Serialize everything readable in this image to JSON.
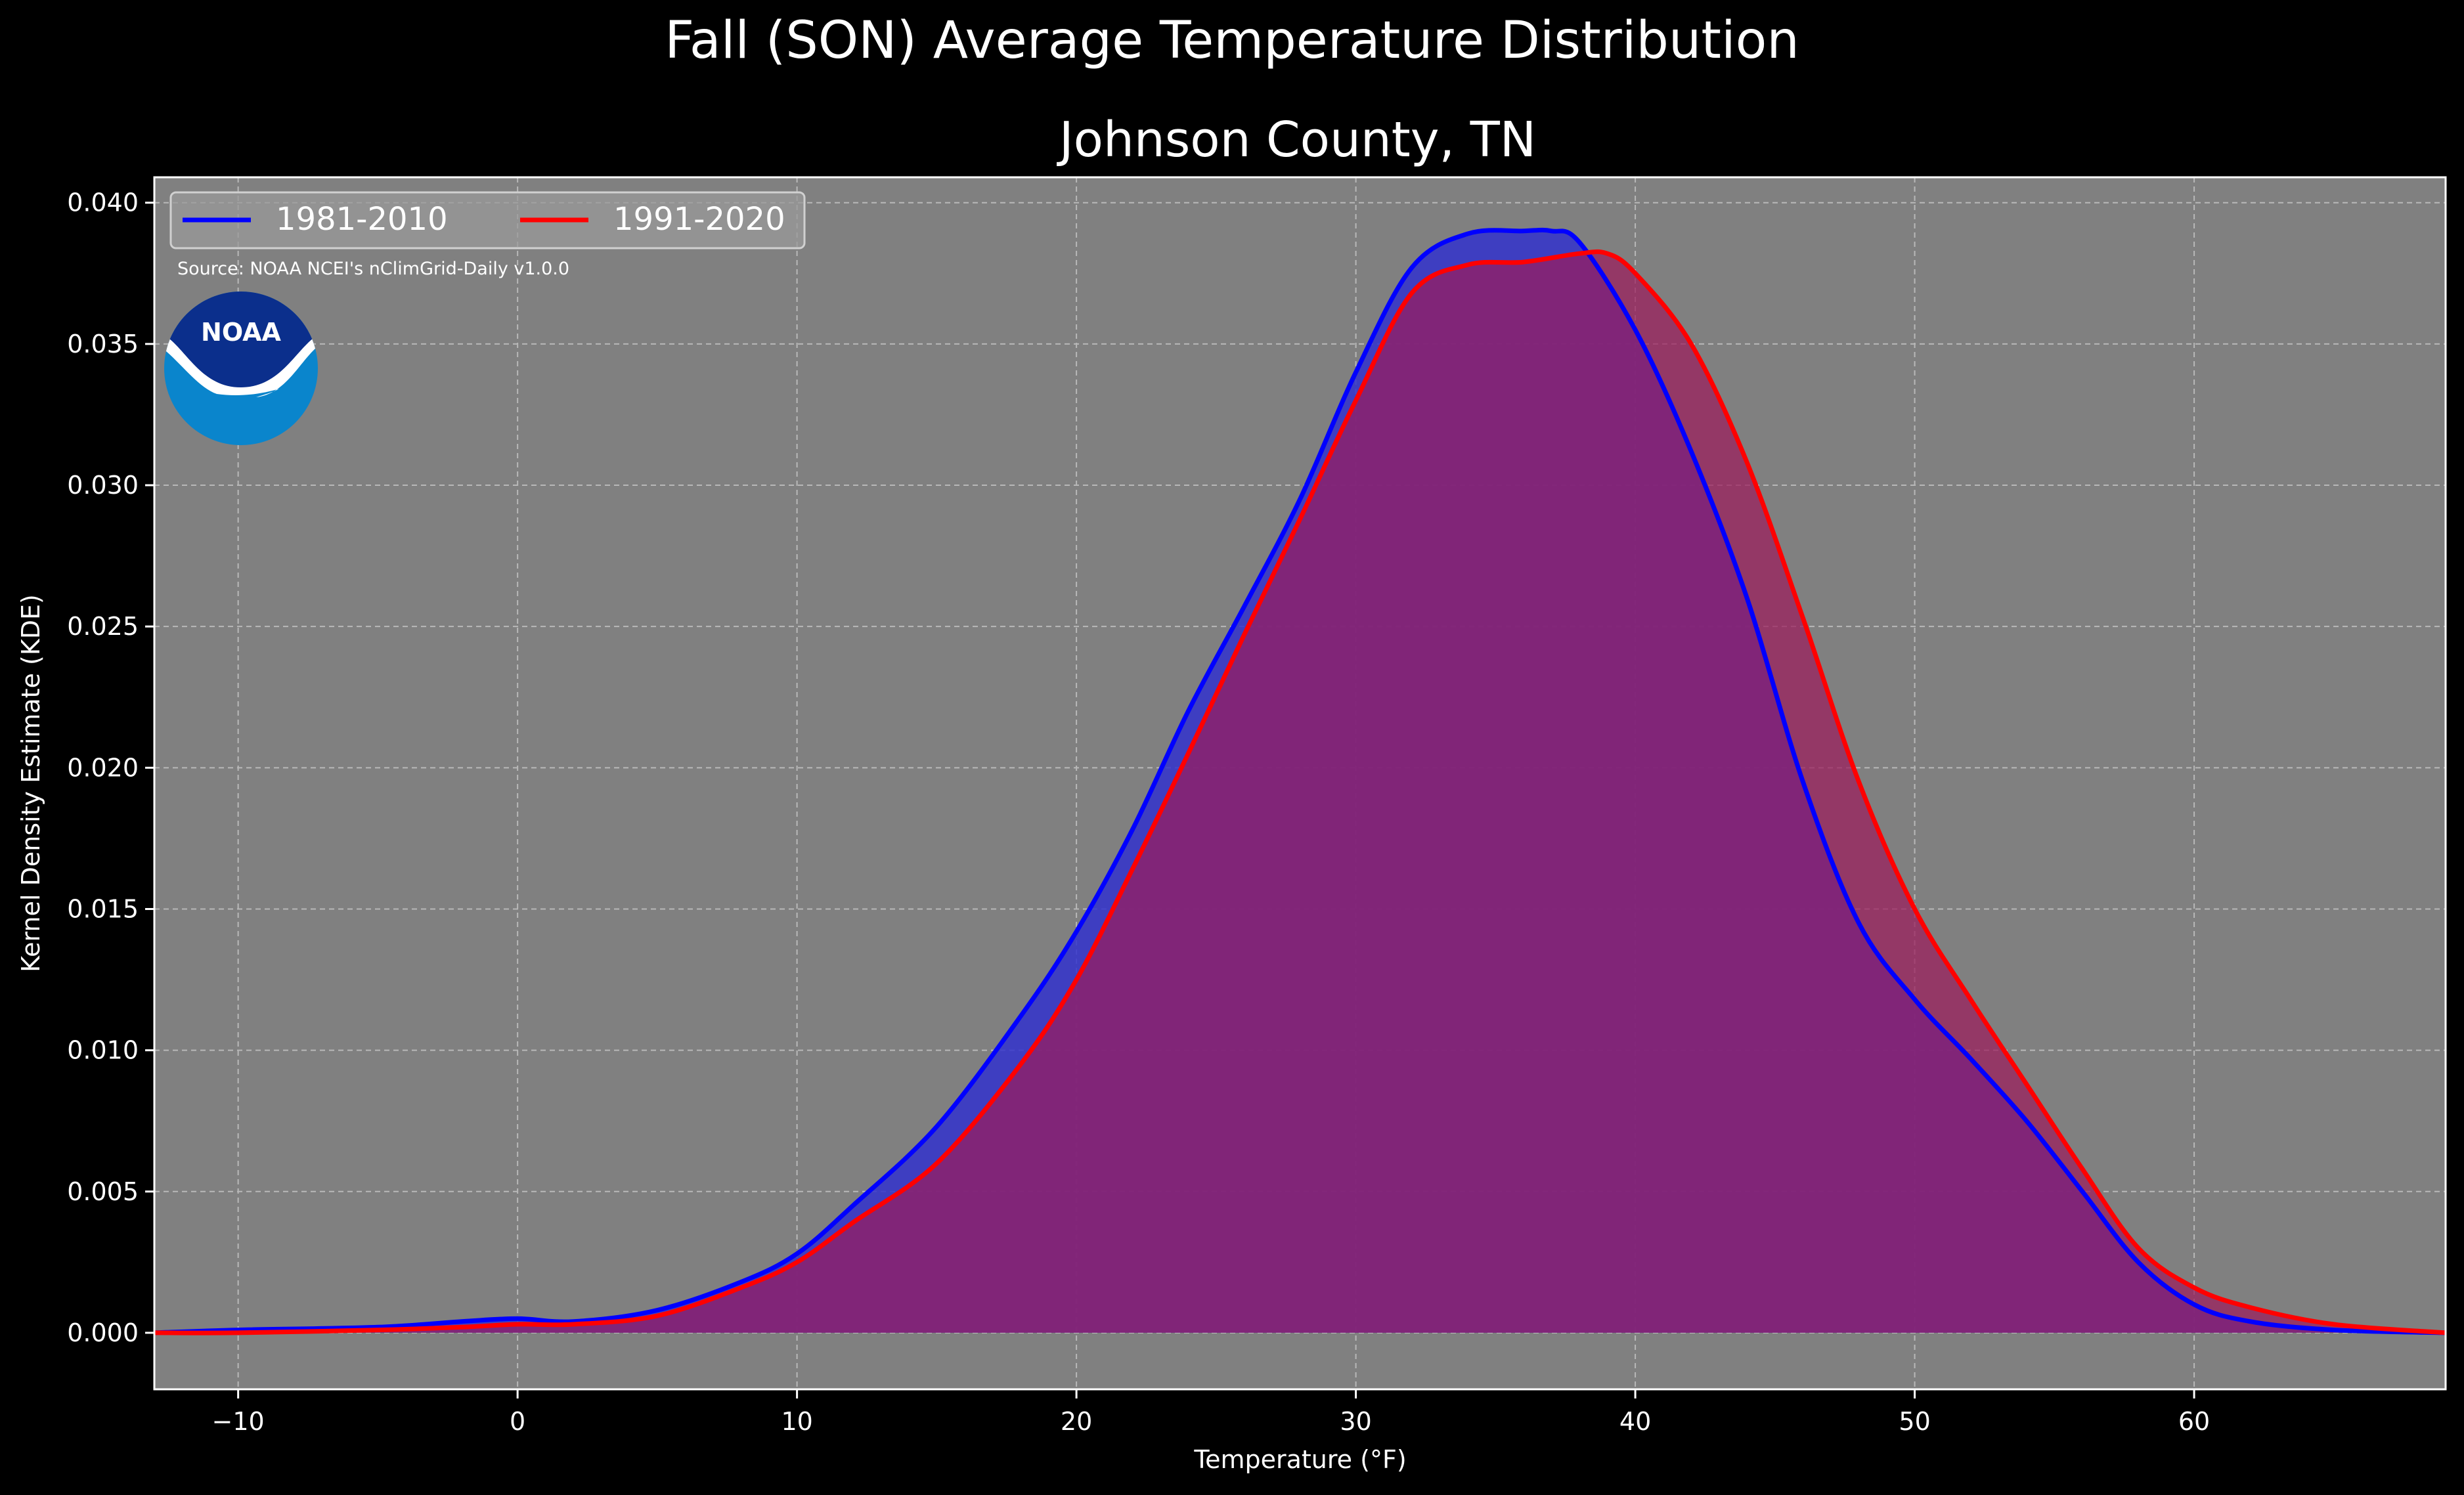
{
  "chart_data": {
    "type": "area",
    "title": "Fall (SON) Average Temperature Distribution",
    "subtitle": "Johnson County, TN",
    "xlabel": "Temperature ($^\\circ$F)",
    "xlabel_display": "Temperature (°F)",
    "ylabel": "Kernel Density Estimate (KDE)",
    "xlim": [
      -13,
      69
    ],
    "ylim": [
      -0.002,
      0.0409
    ],
    "x_ticks": [
      -10,
      0,
      10,
      20,
      30,
      40,
      50,
      60
    ],
    "x_tick_labels": [
      "−10",
      "0",
      "10",
      "20",
      "30",
      "40",
      "50",
      "60"
    ],
    "y_ticks": [
      0.0,
      0.005,
      0.01,
      0.015,
      0.02,
      0.025,
      0.03,
      0.035,
      0.04
    ],
    "y_tick_labels": [
      "0.000",
      "0.005",
      "0.010",
      "0.015",
      "0.020",
      "0.025",
      "0.030",
      "0.035",
      "0.040"
    ],
    "grid": true,
    "legend_position": "top-left",
    "source_note": "Source: NOAA NCEI's nClimGrid-Daily v1.0.0",
    "logo_text": "NOAA",
    "colors": {
      "background": "#000000",
      "plot_background": "#808080",
      "series_1981": "#0000ff",
      "series_1991": "#ff0000",
      "fill_1981": "#3333cc",
      "fill_1991": "#9b1c5c",
      "logo_dark": "#0b2f8c",
      "logo_light": "#0a85cc"
    },
    "series": [
      {
        "name": "1981-2010",
        "x": [
          -13,
          -10,
          -5,
          -2,
          0,
          2,
          5,
          8,
          10,
          12,
          15,
          18,
          20,
          22,
          24,
          26,
          28,
          30,
          32,
          34,
          36,
          37,
          38,
          40,
          42,
          44,
          46,
          48,
          50,
          52,
          54,
          56,
          58,
          60,
          62,
          65,
          69
        ],
        "y": [
          0.0,
          0.0001,
          0.0002,
          0.0004,
          0.0005,
          0.0004,
          0.0008,
          0.0018,
          0.0028,
          0.0045,
          0.0073,
          0.0112,
          0.0142,
          0.0178,
          0.022,
          0.0257,
          0.0295,
          0.034,
          0.0377,
          0.0389,
          0.039,
          0.039,
          0.0386,
          0.0355,
          0.0312,
          0.026,
          0.0195,
          0.0145,
          0.0118,
          0.0097,
          0.0075,
          0.005,
          0.0025,
          0.001,
          0.0004,
          0.0001,
          0.0
        ]
      },
      {
        "name": "1991-2020",
        "x": [
          -13,
          -10,
          -5,
          -2,
          0,
          2,
          5,
          8,
          10,
          12,
          15,
          18,
          20,
          22,
          24,
          26,
          28,
          30,
          32,
          34,
          36,
          38,
          39,
          40,
          42,
          44,
          46,
          48,
          50,
          52,
          54,
          56,
          58,
          60,
          62,
          65,
          69
        ],
        "y": [
          0.0,
          0.0,
          0.0001,
          0.0002,
          0.0003,
          0.0003,
          0.0006,
          0.0016,
          0.0025,
          0.0039,
          0.006,
          0.0095,
          0.0125,
          0.0164,
          0.0205,
          0.0247,
          0.0288,
          0.033,
          0.0368,
          0.0378,
          0.0379,
          0.0382,
          0.0382,
          0.0375,
          0.035,
          0.0308,
          0.0253,
          0.0195,
          0.015,
          0.0118,
          0.0088,
          0.0058,
          0.003,
          0.0016,
          0.0009,
          0.0003,
          0.0
        ]
      }
    ]
  }
}
